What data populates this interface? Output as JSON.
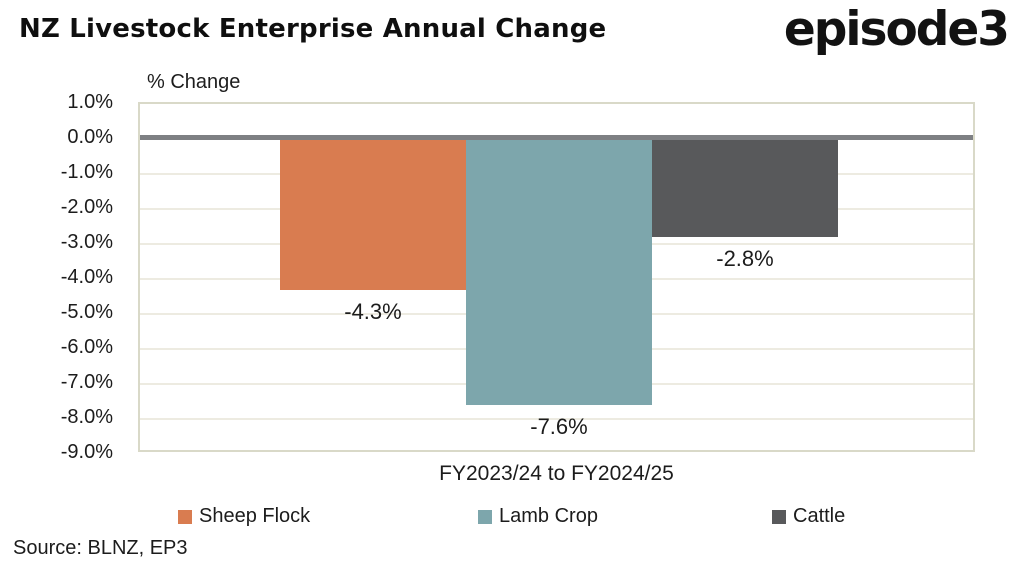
{
  "header": {
    "title": "NZ Livestock Enterprise Annual Change",
    "logo_text": "episode3"
  },
  "chart_data": {
    "type": "bar",
    "title": "NZ Livestock Enterprise Annual Change",
    "axis_title": "% Change",
    "xlabel": "FY2023/24 to FY2024/25",
    "categories": [
      "FY2023/24 to FY2024/25"
    ],
    "series": [
      {
        "name": "Sheep Flock",
        "value": -4.3,
        "label": "-4.3%",
        "color": "#D97C50"
      },
      {
        "name": "Lamb Crop",
        "value": -7.6,
        "label": "-7.6%",
        "color": "#7DA6AC"
      },
      {
        "name": "Cattle",
        "value": -2.8,
        "label": "-2.8%",
        "color": "#58595B"
      }
    ],
    "ylim": [
      1.0,
      -9.0
    ],
    "ytick_step": 1.0,
    "yticks": [
      "1.0%",
      "0.0%",
      "-1.0%",
      "-2.0%",
      "-3.0%",
      "-4.0%",
      "-5.0%",
      "-6.0%",
      "-7.0%",
      "-8.0%",
      "-9.0%"
    ],
    "grid": true,
    "legend": [
      "Sheep Flock",
      "Lamb Crop",
      "Cattle"
    ],
    "legend_position": "bottom",
    "colors": {
      "zero_line": "#7E8083",
      "gridline": "#EDEBE1",
      "plot_border": "#D9D9C8",
      "background": "#FFFFFF"
    }
  },
  "footer": {
    "source": "Source: BLNZ, EP3"
  }
}
